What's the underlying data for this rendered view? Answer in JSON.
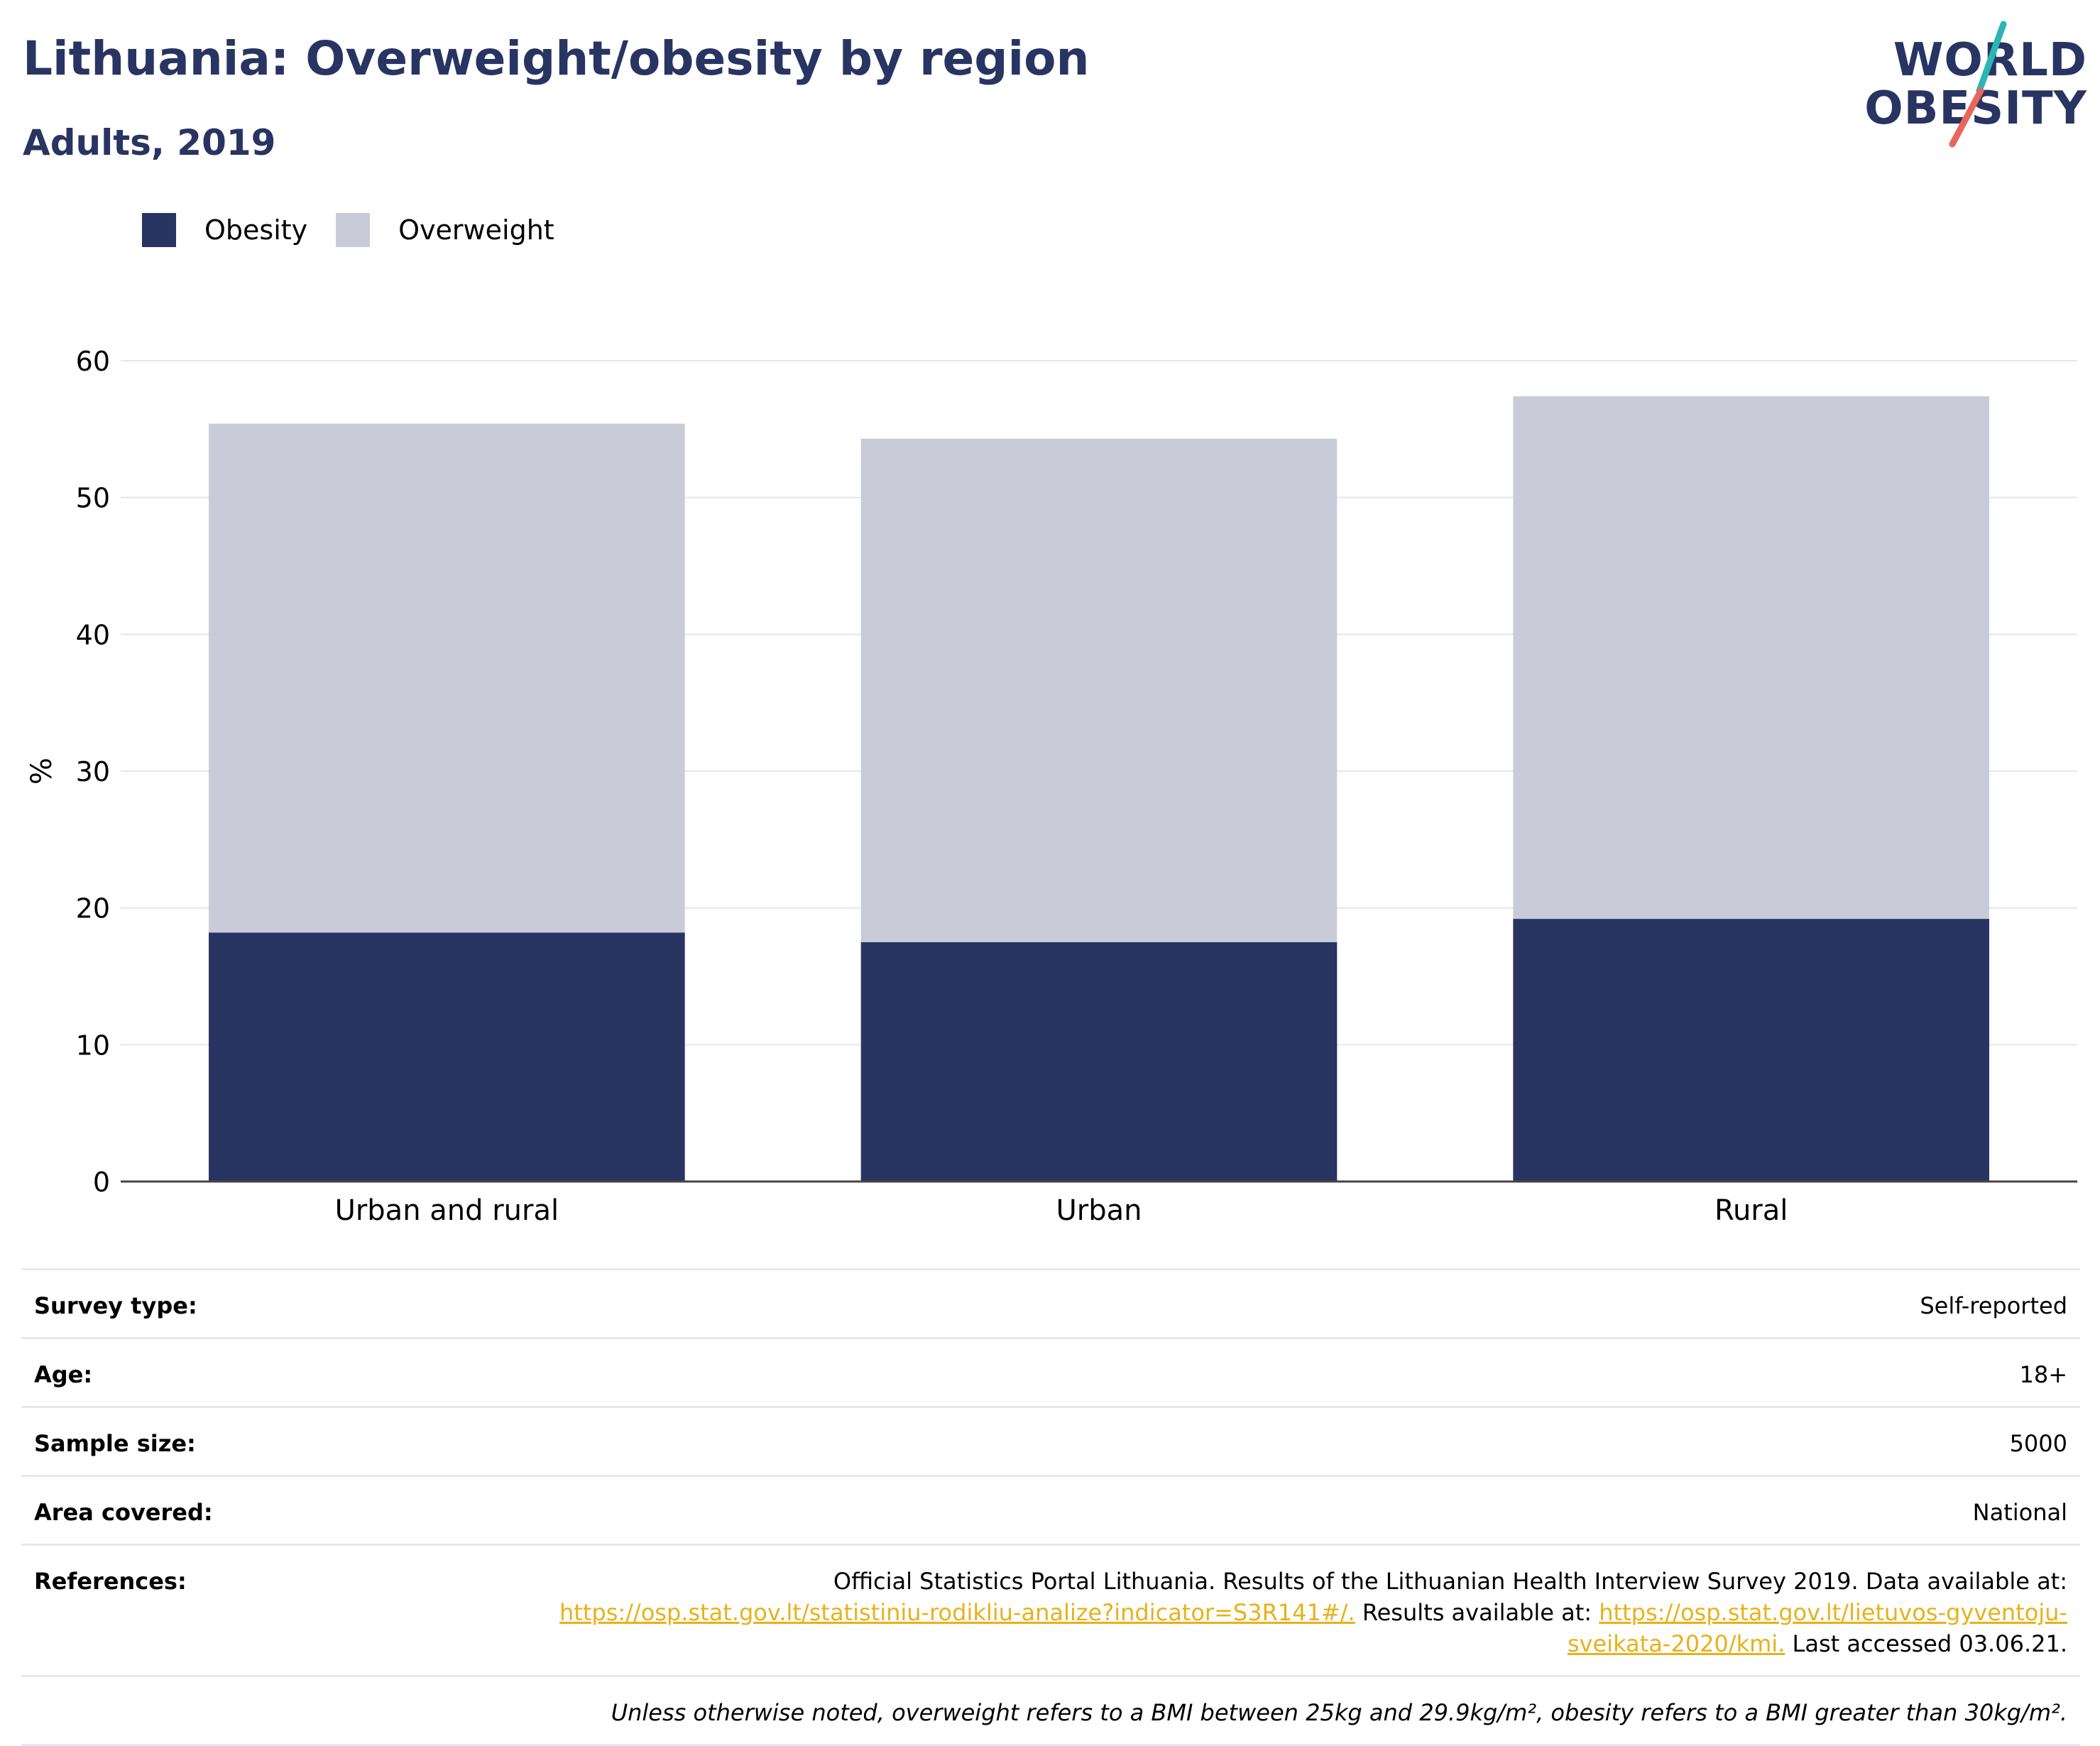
{
  "header": {
    "title": "Lithuania: Overweight/obesity by region",
    "subtitle": "Adults, 2019"
  },
  "logo": {
    "line1": "WORLD",
    "line2": "OBESITY",
    "colors": {
      "text": "#283462",
      "slash_top": "#2bb5b5",
      "slash_bottom": "#e8665a"
    }
  },
  "colors": {
    "obesity": "#283462",
    "overweight": "#c9ccd8",
    "grid": "#e6e6ea",
    "axis": "#444444",
    "link": "#e8b11a"
  },
  "legend": {
    "items": [
      {
        "label": "Obesity",
        "color": "#283462"
      },
      {
        "label": "Overweight",
        "color": "#c9ccd8"
      }
    ]
  },
  "chart_data": {
    "type": "bar",
    "stacked": true,
    "categories": [
      "Urban and rural",
      "Urban",
      "Rural"
    ],
    "series": [
      {
        "name": "Obesity",
        "values": [
          18.2,
          17.5,
          19.2
        ]
      },
      {
        "name": "Overweight",
        "values": [
          37.2,
          36.8,
          38.2
        ]
      }
    ],
    "ylabel": "%",
    "ylim": [
      0,
      60
    ],
    "yticks": [
      0,
      10,
      20,
      30,
      40,
      50,
      60
    ],
    "grid": true,
    "legend_position": "top-left"
  },
  "meta": {
    "survey_type": {
      "key": "Survey type:",
      "value": "Self-reported"
    },
    "age": {
      "key": "Age:",
      "value": "18+"
    },
    "sample_size": {
      "key": "Sample size:",
      "value": "5000"
    },
    "area_covered": {
      "key": "Area covered:",
      "value": "National"
    },
    "references": {
      "key": "References:",
      "text1": "Official Statistics Portal Lithuania. Results of the Lithuanian Health Interview Survey 2019. Data available at:",
      "link1": "https://osp.stat.gov.lt/statistiniu-rodikliu-analize?indicator=S3R141#/.",
      "text2": " Results available at: ",
      "link2a": "https://osp.stat.gov.lt/lietuvos-gyventoju-",
      "link2b": "sveikata-2020/kmi.",
      "text3": " Last accessed 03.06.21."
    },
    "note": "Unless otherwise noted, overweight refers to a BMI between 25kg and 29.9kg/m², obesity refers to a BMI greater than 30kg/m²."
  }
}
